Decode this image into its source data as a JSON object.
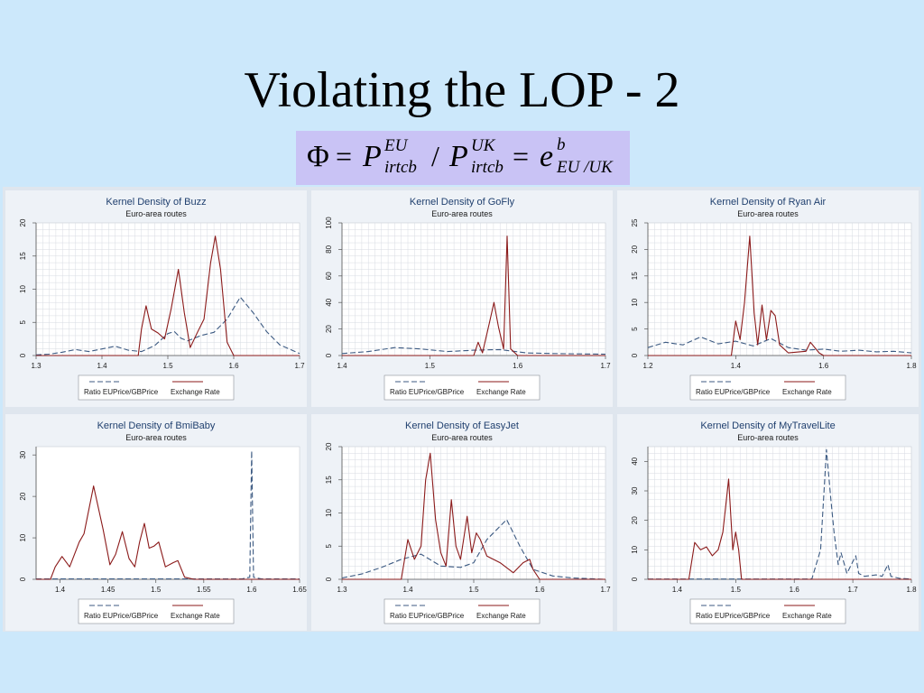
{
  "slide": {
    "title": "Violating the LOP - 2",
    "formula": {
      "phi": "Φ",
      "eq1": "=",
      "p1": "P",
      "p1_sup": "EU",
      "p1_sub": "irtcb",
      "slash": "/",
      "p2": "P",
      "p2_sup": "UK",
      "p2_sub": "irtcb",
      "eq2": "=",
      "e": "e",
      "e_sup": "b",
      "e_sub": "EU /UK"
    },
    "colors": {
      "background": "#cce8fb",
      "formula_box": "#c9c3f5",
      "ratio_series": "#3c5a82",
      "exchange_series": "#8b1a1a"
    }
  },
  "chart_data": [
    {
      "type": "line",
      "title": "Kernel Density of Buzz",
      "subtitle": "Euro-area routes",
      "xlim": [
        1.3,
        1.7
      ],
      "ylim": [
        0,
        20
      ],
      "xticks": [
        1.3,
        1.4,
        1.5,
        1.6,
        1.7
      ],
      "yticks": [
        0,
        5,
        10,
        15,
        20
      ],
      "grid": true,
      "legend": "bottom",
      "series": [
        {
          "name": "Ratio EUPrice/GBPrice",
          "style": "dashed",
          "points": [
            [
              1.3,
              0.1
            ],
            [
              1.32,
              0.2
            ],
            [
              1.34,
              0.5
            ],
            [
              1.36,
              0.9
            ],
            [
              1.38,
              0.6
            ],
            [
              1.4,
              1.0
            ],
            [
              1.42,
              1.4
            ],
            [
              1.44,
              0.8
            ],
            [
              1.46,
              0.6
            ],
            [
              1.48,
              1.5
            ],
            [
              1.5,
              3.3
            ],
            [
              1.51,
              3.6
            ],
            [
              1.52,
              2.6
            ],
            [
              1.53,
              2.2
            ],
            [
              1.55,
              3.0
            ],
            [
              1.57,
              3.5
            ],
            [
              1.59,
              5.5
            ],
            [
              1.61,
              8.8
            ],
            [
              1.63,
              6.4
            ],
            [
              1.65,
              3.6
            ],
            [
              1.67,
              1.6
            ],
            [
              1.7,
              0.3
            ]
          ]
        },
        {
          "name": "Exchange Rate",
          "style": "solid",
          "points": [
            [
              1.3,
              0
            ],
            [
              1.455,
              0
            ],
            [
              1.46,
              4.0
            ],
            [
              1.467,
              7.5
            ],
            [
              1.475,
              4.0
            ],
            [
              1.485,
              3.4
            ],
            [
              1.495,
              2.5
            ],
            [
              1.505,
              7.0
            ],
            [
              1.516,
              13.0
            ],
            [
              1.525,
              6.5
            ],
            [
              1.534,
              1.2
            ],
            [
              1.545,
              3.5
            ],
            [
              1.555,
              5.5
            ],
            [
              1.565,
              14.0
            ],
            [
              1.572,
              18.0
            ],
            [
              1.58,
              13.0
            ],
            [
              1.59,
              2.0
            ],
            [
              1.6,
              0
            ],
            [
              1.7,
              0
            ]
          ]
        }
      ]
    },
    {
      "type": "line",
      "title": "Kernel Density of GoFly",
      "subtitle": "Euro-area routes",
      "xlim": [
        1.4,
        1.7
      ],
      "ylim": [
        0,
        100
      ],
      "xticks": [
        1.4,
        1.5,
        1.6,
        1.7
      ],
      "yticks": [
        0,
        20,
        40,
        60,
        80,
        100
      ],
      "grid": true,
      "legend": "bottom",
      "series": [
        {
          "name": "Ratio EUPrice/GBPrice",
          "style": "dashed",
          "points": [
            [
              1.4,
              1.5
            ],
            [
              1.43,
              3
            ],
            [
              1.46,
              6
            ],
            [
              1.49,
              5
            ],
            [
              1.52,
              3
            ],
            [
              1.55,
              4
            ],
            [
              1.58,
              4.5
            ],
            [
              1.61,
              2
            ],
            [
              1.64,
              1.5
            ],
            [
              1.67,
              1.2
            ],
            [
              1.7,
              1
            ]
          ]
        },
        {
          "name": "Exchange Rate",
          "style": "solid",
          "points": [
            [
              1.4,
              0
            ],
            [
              1.55,
              0
            ],
            [
              1.555,
              10
            ],
            [
              1.56,
              2
            ],
            [
              1.568,
              25
            ],
            [
              1.573,
              40
            ],
            [
              1.578,
              22
            ],
            [
              1.584,
              5
            ],
            [
              1.588,
              90
            ],
            [
              1.592,
              5
            ],
            [
              1.6,
              0
            ],
            [
              1.7,
              0
            ]
          ]
        }
      ]
    },
    {
      "type": "line",
      "title": "Kernel Density of Ryan Air",
      "subtitle": "Euro-area routes",
      "xlim": [
        1.2,
        1.8
      ],
      "ylim": [
        0,
        25
      ],
      "xticks": [
        1.2,
        1.4,
        1.6,
        1.8
      ],
      "yticks": [
        0,
        5,
        10,
        15,
        20,
        25
      ],
      "grid": true,
      "legend": "bottom",
      "series": [
        {
          "name": "Ratio EUPrice/GBPrice",
          "style": "dashed",
          "points": [
            [
              1.2,
              1.5
            ],
            [
              1.24,
              2.5
            ],
            [
              1.28,
              2
            ],
            [
              1.32,
              3.5
            ],
            [
              1.36,
              2.2
            ],
            [
              1.4,
              2.7
            ],
            [
              1.44,
              1.8
            ],
            [
              1.48,
              3.2
            ],
            [
              1.52,
              1.5
            ],
            [
              1.56,
              1.0
            ],
            [
              1.6,
              1.2
            ],
            [
              1.64,
              0.8
            ],
            [
              1.68,
              1.0
            ],
            [
              1.72,
              0.7
            ],
            [
              1.76,
              0.8
            ],
            [
              1.8,
              0.5
            ]
          ]
        },
        {
          "name": "Exchange Rate",
          "style": "solid",
          "points": [
            [
              1.2,
              0
            ],
            [
              1.39,
              0
            ],
            [
              1.4,
              6.5
            ],
            [
              1.41,
              3
            ],
            [
              1.42,
              10
            ],
            [
              1.432,
              22.5
            ],
            [
              1.442,
              8
            ],
            [
              1.45,
              2
            ],
            [
              1.46,
              9.5
            ],
            [
              1.47,
              3
            ],
            [
              1.48,
              8.5
            ],
            [
              1.49,
              7.5
            ],
            [
              1.5,
              2
            ],
            [
              1.52,
              0.5
            ],
            [
              1.56,
              0.8
            ],
            [
              1.57,
              2.5
            ],
            [
              1.59,
              0.5
            ],
            [
              1.6,
              0
            ],
            [
              1.8,
              0
            ]
          ]
        }
      ]
    },
    {
      "type": "line",
      "title": "Kernel Density of BmiBaby",
      "subtitle": "Euro-area routes",
      "xlim": [
        1.375,
        1.65
      ],
      "ylim": [
        0,
        32
      ],
      "xticks": [
        1.4,
        1.45,
        1.5,
        1.55,
        1.6,
        1.65
      ],
      "yticks": [
        0,
        10,
        20,
        30
      ],
      "grid": false,
      "legend": "bottom",
      "series": [
        {
          "name": "Ratio EUPrice/GBPrice",
          "style": "dashed",
          "points": [
            [
              1.375,
              0.1
            ],
            [
              1.59,
              0.1
            ],
            [
              1.598,
              0.5
            ],
            [
              1.6,
              31
            ],
            [
              1.602,
              0.5
            ],
            [
              1.61,
              0.1
            ],
            [
              1.65,
              0.1
            ]
          ]
        },
        {
          "name": "Exchange Rate",
          "style": "solid",
          "points": [
            [
              1.375,
              0
            ],
            [
              1.39,
              0
            ],
            [
              1.395,
              3
            ],
            [
              1.402,
              5.5
            ],
            [
              1.41,
              3
            ],
            [
              1.42,
              9
            ],
            [
              1.425,
              11
            ],
            [
              1.435,
              22.5
            ],
            [
              1.445,
              12
            ],
            [
              1.452,
              3.5
            ],
            [
              1.458,
              6
            ],
            [
              1.465,
              11.5
            ],
            [
              1.472,
              5
            ],
            [
              1.478,
              3
            ],
            [
              1.483,
              9
            ],
            [
              1.488,
              13.5
            ],
            [
              1.493,
              7.5
            ],
            [
              1.498,
              8
            ],
            [
              1.503,
              9
            ],
            [
              1.51,
              3
            ],
            [
              1.518,
              4
            ],
            [
              1.523,
              4.5
            ],
            [
              1.53,
              0.5
            ],
            [
              1.54,
              0
            ],
            [
              1.65,
              0
            ]
          ]
        }
      ]
    },
    {
      "type": "line",
      "title": "Kernel Density of EasyJet",
      "subtitle": "Euro-area routes",
      "xlim": [
        1.3,
        1.7
      ],
      "ylim": [
        0,
        20
      ],
      "xticks": [
        1.3,
        1.4,
        1.5,
        1.6,
        1.7
      ],
      "yticks": [
        0,
        5,
        10,
        15,
        20
      ],
      "grid": true,
      "legend": "bottom",
      "series": [
        {
          "name": "Ratio EUPrice/GBPrice",
          "style": "dashed",
          "points": [
            [
              1.3,
              0.2
            ],
            [
              1.33,
              0.8
            ],
            [
              1.36,
              1.8
            ],
            [
              1.39,
              3.0
            ],
            [
              1.42,
              3.8
            ],
            [
              1.45,
              2.0
            ],
            [
              1.48,
              1.8
            ],
            [
              1.5,
              2.5
            ],
            [
              1.52,
              6.0
            ],
            [
              1.54,
              8.0
            ],
            [
              1.55,
              9.0
            ],
            [
              1.57,
              5.0
            ],
            [
              1.59,
              1.5
            ],
            [
              1.62,
              0.5
            ],
            [
              1.65,
              0.2
            ],
            [
              1.7,
              0
            ]
          ]
        },
        {
          "name": "Exchange Rate",
          "style": "solid",
          "points": [
            [
              1.3,
              0
            ],
            [
              1.39,
              0
            ],
            [
              1.4,
              6
            ],
            [
              1.41,
              3
            ],
            [
              1.42,
              5
            ],
            [
              1.427,
              15
            ],
            [
              1.434,
              19
            ],
            [
              1.442,
              9
            ],
            [
              1.45,
              4
            ],
            [
              1.458,
              2
            ],
            [
              1.466,
              12
            ],
            [
              1.473,
              5
            ],
            [
              1.48,
              3
            ],
            [
              1.49,
              9.5
            ],
            [
              1.497,
              4
            ],
            [
              1.504,
              7
            ],
            [
              1.51,
              6
            ],
            [
              1.52,
              3.5
            ],
            [
              1.54,
              2.5
            ],
            [
              1.56,
              1
            ],
            [
              1.575,
              2.5
            ],
            [
              1.585,
              3
            ],
            [
              1.59,
              1.5
            ],
            [
              1.6,
              0
            ],
            [
              1.7,
              0
            ]
          ]
        }
      ]
    },
    {
      "type": "line",
      "title": "Kernel Density of MyTravelLite",
      "subtitle": "Euro-area routes",
      "xlim": [
        1.35,
        1.8
      ],
      "ylim": [
        0,
        45
      ],
      "xticks": [
        1.4,
        1.5,
        1.6,
        1.7,
        1.8
      ],
      "yticks": [
        0,
        10,
        20,
        30,
        40
      ],
      "grid": true,
      "legend": "bottom",
      "series": [
        {
          "name": "Ratio EUPrice/GBPrice",
          "style": "dashed",
          "points": [
            [
              1.35,
              0.1
            ],
            [
              1.63,
              0.1
            ],
            [
              1.645,
              10
            ],
            [
              1.655,
              44
            ],
            [
              1.662,
              28
            ],
            [
              1.668,
              16
            ],
            [
              1.675,
              5
            ],
            [
              1.68,
              9
            ],
            [
              1.69,
              2
            ],
            [
              1.7,
              6
            ],
            [
              1.705,
              8
            ],
            [
              1.71,
              2
            ],
            [
              1.72,
              1
            ],
            [
              1.74,
              1.5
            ],
            [
              1.75,
              1
            ],
            [
              1.76,
              5
            ],
            [
              1.765,
              1
            ],
            [
              1.78,
              0.3
            ],
            [
              1.8,
              0.1
            ]
          ]
        },
        {
          "name": "Exchange Rate",
          "style": "solid",
          "points": [
            [
              1.35,
              0
            ],
            [
              1.42,
              0
            ],
            [
              1.43,
              12.5
            ],
            [
              1.44,
              10
            ],
            [
              1.45,
              11
            ],
            [
              1.46,
              8
            ],
            [
              1.47,
              10
            ],
            [
              1.478,
              16
            ],
            [
              1.488,
              34
            ],
            [
              1.495,
              10
            ],
            [
              1.5,
              16
            ],
            [
              1.505,
              10
            ],
            [
              1.51,
              0
            ],
            [
              1.8,
              0
            ]
          ]
        }
      ]
    }
  ]
}
